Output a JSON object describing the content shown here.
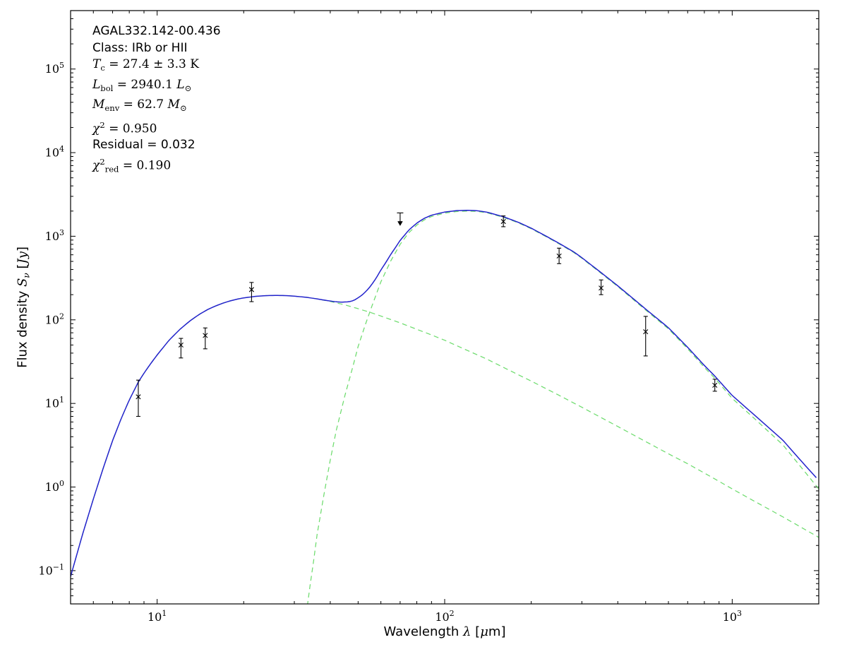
{
  "figure": {
    "background": "#ffffff"
  },
  "chart_data": {
    "type": "line",
    "title": "",
    "x_axis": {
      "scale": "log",
      "min": 5,
      "max": 2000,
      "labeled_tick_exponents": [
        1,
        2,
        3
      ]
    },
    "y_axis": {
      "scale": "log",
      "min": 0.04,
      "max": 500000,
      "labeled_tick_exponents": [
        -1,
        0,
        1,
        2,
        3,
        4,
        5
      ]
    },
    "grid": "off",
    "legend": "none",
    "colors": {
      "model_total": "#2222cc",
      "model_components": "#6edc6e",
      "data_points": "#000000",
      "frame": "#000000"
    },
    "xlabel_segments": [
      {
        "t": "Wavelength "
      },
      {
        "t": "λ",
        "style": "italic"
      },
      {
        "t": " ["
      },
      {
        "t": "μ",
        "style": "italic"
      },
      {
        "t": "m]"
      }
    ],
    "ylabel_segments": [
      {
        "t": "Flux density "
      },
      {
        "t": "S",
        "style": "italic"
      },
      {
        "t": "ν",
        "style": "italic sub"
      },
      {
        "t": " ["
      },
      {
        "t": "Jy",
        "style": "italic"
      },
      {
        "t": "]"
      }
    ],
    "annotation_lines": [
      {
        "font": "sans",
        "segments": [
          {
            "t": "AGAL332.142-00.436"
          }
        ]
      },
      {
        "font": "sans",
        "segments": [
          {
            "t": "Class: IRb or HII"
          }
        ]
      },
      {
        "font": "serif",
        "segments": [
          {
            "t": "T",
            "style": "italic"
          },
          {
            "t": "c",
            "style": "sub"
          },
          {
            "t": " = 27.4 ± 3.3 K"
          }
        ]
      },
      {
        "font": "serif",
        "segments": [
          {
            "t": "L",
            "style": "italic"
          },
          {
            "t": "bol",
            "style": "sub"
          },
          {
            "t": " = 2940.1 "
          },
          {
            "t": "L",
            "style": "italic"
          },
          {
            "t": "⊙",
            "style": "sub"
          }
        ]
      },
      {
        "font": "serif",
        "segments": [
          {
            "t": "M",
            "style": "italic"
          },
          {
            "t": "env",
            "style": "sub"
          },
          {
            "t": " = 62.7 "
          },
          {
            "t": "M",
            "style": "italic"
          },
          {
            "t": "⊙",
            "style": "sub"
          }
        ]
      },
      {
        "font": "serif",
        "segments": [
          {
            "t": "χ",
            "style": "italic"
          },
          {
            "t": "2",
            "style": "sup"
          },
          {
            "t": " = 0.950"
          }
        ]
      },
      {
        "font": "sans",
        "segments": [
          {
            "t": "Residual = 0.032"
          }
        ]
      },
      {
        "font": "serif",
        "segments": [
          {
            "t": "χ",
            "style": "italic"
          },
          {
            "t": "2",
            "style": "sup"
          },
          {
            "t": "red",
            "style": "sub"
          },
          {
            "t": " = 0.190"
          }
        ]
      }
    ],
    "series": [
      {
        "name": "warm-component",
        "style": "dashed",
        "points": [
          [
            5,
            0.085
          ],
          [
            5.5,
            0.27
          ],
          [
            6,
            0.72
          ],
          [
            6.5,
            1.7
          ],
          [
            7,
            3.6
          ],
          [
            7.5,
            6.6
          ],
          [
            8,
            11
          ],
          [
            8.6,
            18
          ],
          [
            9,
            23
          ],
          [
            9.5,
            30
          ],
          [
            10,
            38
          ],
          [
            11,
            57
          ],
          [
            12,
            77
          ],
          [
            13,
            97
          ],
          [
            14,
            116
          ],
          [
            15,
            133
          ],
          [
            16,
            147
          ],
          [
            17,
            159
          ],
          [
            18,
            169
          ],
          [
            19,
            177
          ],
          [
            20,
            183
          ],
          [
            22,
            191
          ],
          [
            24,
            195
          ],
          [
            26,
            196
          ],
          [
            28,
            195
          ],
          [
            30,
            192
          ],
          [
            33,
            186
          ],
          [
            36,
            178
          ],
          [
            40,
            166
          ],
          [
            45,
            151
          ],
          [
            50,
            136
          ],
          [
            55,
            123
          ],
          [
            60,
            111
          ],
          [
            70,
            92
          ],
          [
            80,
            77
          ],
          [
            90,
            66
          ],
          [
            100,
            57
          ],
          [
            120,
            43
          ],
          [
            140,
            34
          ],
          [
            160,
            27
          ],
          [
            200,
            18.5
          ],
          [
            250,
            12.5
          ],
          [
            300,
            9
          ],
          [
            400,
            5.3
          ],
          [
            500,
            3.5
          ],
          [
            600,
            2.5
          ],
          [
            700,
            1.9
          ],
          [
            870,
            1.25
          ],
          [
            1000,
            0.95
          ],
          [
            1200,
            0.67
          ],
          [
            1500,
            0.44
          ],
          [
            2000,
            0.25
          ]
        ]
      },
      {
        "name": "cold-component",
        "style": "dashed",
        "points": [
          [
            33,
            0.03
          ],
          [
            34,
            0.065
          ],
          [
            35,
            0.13
          ],
          [
            36,
            0.27
          ],
          [
            38,
            0.8
          ],
          [
            40,
            2.1
          ],
          [
            42,
            4.8
          ],
          [
            45,
            12.5
          ],
          [
            48,
            28
          ],
          [
            50,
            48
          ],
          [
            53,
            88
          ],
          [
            56,
            150
          ],
          [
            60,
            285
          ],
          [
            65,
            510
          ],
          [
            70,
            800
          ],
          [
            75,
            1100
          ],
          [
            80,
            1360
          ],
          [
            85,
            1570
          ],
          [
            90,
            1720
          ],
          [
            100,
            1890
          ],
          [
            110,
            1975
          ],
          [
            120,
            2000
          ],
          [
            130,
            1980
          ],
          [
            140,
            1910
          ],
          [
            160,
            1685
          ],
          [
            180,
            1450
          ],
          [
            200,
            1230
          ],
          [
            225,
            990
          ],
          [
            250,
            810
          ],
          [
            280,
            645
          ],
          [
            300,
            545
          ],
          [
            350,
            360
          ],
          [
            400,
            250
          ],
          [
            450,
            178
          ],
          [
            500,
            131
          ],
          [
            600,
            78
          ],
          [
            700,
            45
          ],
          [
            800,
            27
          ],
          [
            870,
            20
          ],
          [
            1000,
            11.5
          ],
          [
            1200,
            6.5
          ],
          [
            1500,
            3.2
          ],
          [
            2000,
            0.95
          ]
        ]
      },
      {
        "name": "total-model",
        "style": "solid",
        "sum_of": [
          "warm-component",
          "cold-component"
        ]
      }
    ],
    "data_points": [
      {
        "wavelength_um": 8.6,
        "flux_jy": 12,
        "flux_lo": 7,
        "flux_hi": 19
      },
      {
        "wavelength_um": 12.1,
        "flux_jy": 50,
        "flux_lo": 35,
        "flux_hi": 60
      },
      {
        "wavelength_um": 14.7,
        "flux_jy": 65,
        "flux_lo": 45,
        "flux_hi": 80
      },
      {
        "wavelength_um": 21.3,
        "flux_jy": 230,
        "flux_lo": 165,
        "flux_hi": 280
      },
      {
        "wavelength_um": 160,
        "flux_jy": 1500,
        "flux_lo": 1300,
        "flux_hi": 1750
      },
      {
        "wavelength_um": 250,
        "flux_jy": 580,
        "flux_lo": 470,
        "flux_hi": 720
      },
      {
        "wavelength_um": 350,
        "flux_jy": 240,
        "flux_lo": 200,
        "flux_hi": 300
      },
      {
        "wavelength_um": 500,
        "flux_jy": 72,
        "flux_lo": 37,
        "flux_hi": 110
      },
      {
        "wavelength_um": 870,
        "flux_jy": 16.5,
        "flux_lo": 14,
        "flux_hi": 19.5
      }
    ],
    "upper_limits": [
      {
        "wavelength_um": 70,
        "flux_jy": 1900
      }
    ]
  }
}
